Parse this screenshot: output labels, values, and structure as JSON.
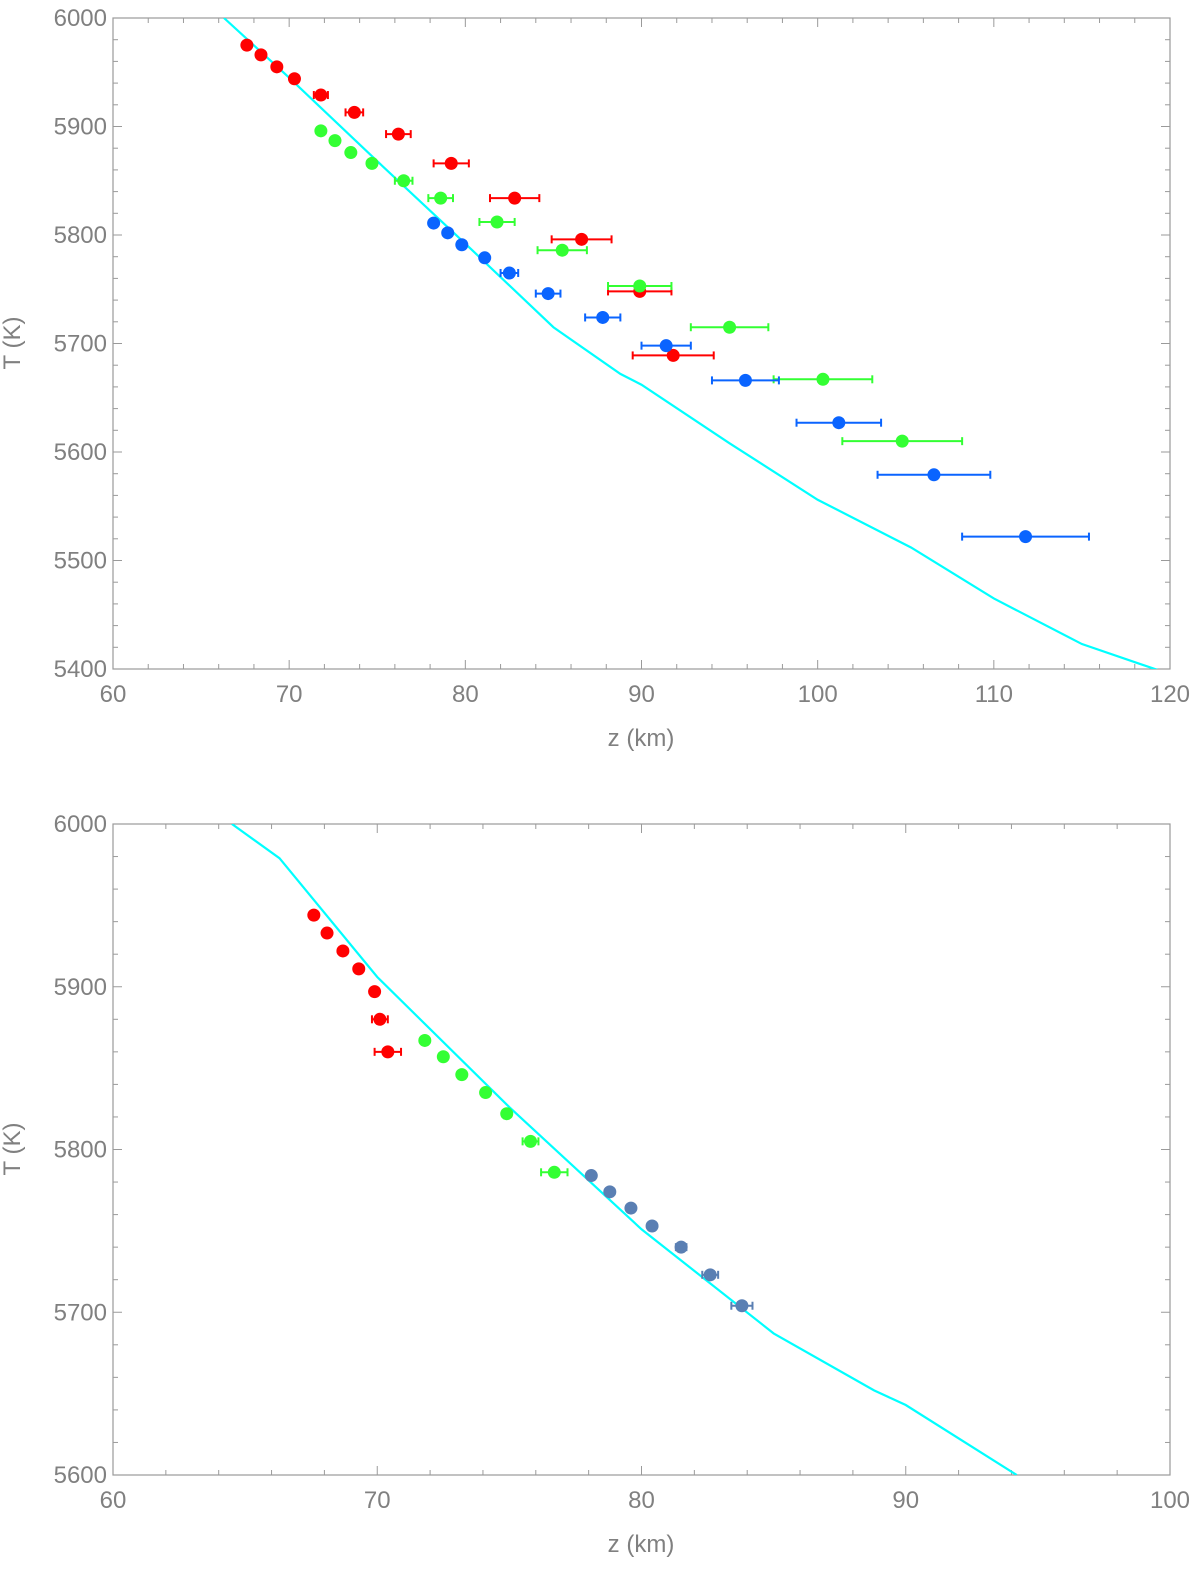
{
  "chart_data": [
    {
      "type": "scatter",
      "title": "",
      "xlabel": "z (km)",
      "ylabel": "T (K)",
      "xlim": [
        60,
        120
      ],
      "ylim": [
        5400,
        6000
      ],
      "xticks": [
        60,
        70,
        80,
        90,
        100,
        110,
        120
      ],
      "yticks": [
        5400,
        5500,
        5600,
        5700,
        5800,
        5900,
        6000
      ],
      "colors": {
        "red": "#ff0000",
        "green": "#33ff33",
        "blue": "#0a64ff",
        "model": "#00ffff"
      },
      "model_line": {
        "name": "model",
        "x": [
          66.3,
          70,
          75,
          80,
          85,
          88.8,
          90,
          95,
          100,
          105.3,
          110,
          115,
          119.5
        ],
        "y": [
          6000,
          5945,
          5868,
          5792,
          5715,
          5672,
          5662,
          5608,
          5556,
          5512,
          5465,
          5423,
          5398
        ]
      },
      "series": [
        {
          "name": "red",
          "x": [
            67.6,
            68.4,
            69.3,
            70.3,
            71.8,
            73.7,
            76.2,
            79.2,
            82.8,
            86.6,
            89.9,
            91.8
          ],
          "y": [
            5975,
            5966,
            5955,
            5944,
            5929,
            5913,
            5893,
            5866,
            5834,
            5796,
            5748,
            5689
          ],
          "err": [
            0,
            0,
            0,
            0,
            0.4,
            0.5,
            0.7,
            1.0,
            1.4,
            1.7,
            1.8,
            2.3
          ]
        },
        {
          "name": "green",
          "x": [
            71.8,
            72.6,
            73.5,
            74.7,
            76.5,
            78.6,
            81.8,
            85.5,
            89.9,
            95.0,
            100.3,
            104.8
          ],
          "y": [
            5896,
            5887,
            5876,
            5866,
            5850,
            5834,
            5812,
            5786,
            5753,
            5715,
            5667,
            5610
          ],
          "err": [
            0,
            0,
            0,
            0,
            0.5,
            0.7,
            1.0,
            1.4,
            1.8,
            2.2,
            2.8,
            3.4
          ]
        },
        {
          "name": "blue",
          "x": [
            78.2,
            79.0,
            79.8,
            81.1,
            82.5,
            84.7,
            87.8,
            91.4,
            95.9,
            101.2,
            106.6,
            111.8
          ],
          "y": [
            5811,
            5802,
            5791,
            5779,
            5765,
            5746,
            5724,
            5698,
            5666,
            5627,
            5579,
            5522
          ],
          "err": [
            0,
            0,
            0,
            0,
            0.5,
            0.7,
            1.0,
            1.4,
            1.9,
            2.4,
            3.2,
            3.6
          ]
        }
      ]
    },
    {
      "type": "scatter",
      "title": "",
      "xlabel": "z (km)",
      "ylabel": "T (K)",
      "xlim": [
        60,
        100
      ],
      "ylim": [
        5600,
        6000
      ],
      "xticks": [
        60,
        70,
        80,
        90,
        100
      ],
      "yticks": [
        5600,
        5700,
        5800,
        5900,
        6000
      ],
      "colors": {
        "red": "#ff0000",
        "green": "#33ff33",
        "blue": "#5a7fb3",
        "model": "#00ffff"
      },
      "model_line": {
        "name": "model",
        "x": [
          64.5,
          66.3,
          70,
          75,
          80,
          85,
          88.8,
          90,
          94.2
        ],
        "y": [
          6000,
          5979,
          5906,
          5826,
          5751,
          5687,
          5652,
          5643,
          5600
        ]
      },
      "series": [
        {
          "name": "red",
          "x": [
            67.6,
            68.1,
            68.7,
            69.3,
            69.9,
            70.1,
            70.4
          ],
          "y": [
            5944,
            5933,
            5922,
            5911,
            5897,
            5880,
            5860
          ],
          "err": [
            0,
            0,
            0,
            0,
            0,
            0.3,
            0.5
          ]
        },
        {
          "name": "green",
          "x": [
            71.8,
            72.5,
            73.2,
            74.1,
            74.9,
            75.8,
            76.7
          ],
          "y": [
            5867,
            5857,
            5846,
            5835,
            5822,
            5805,
            5786
          ],
          "err": [
            0,
            0,
            0,
            0,
            0,
            0.3,
            0.5
          ]
        },
        {
          "name": "blue",
          "x": [
            78.1,
            78.8,
            79.6,
            80.4,
            81.5,
            82.6,
            83.8
          ],
          "y": [
            5784,
            5774,
            5764,
            5753,
            5740,
            5723,
            5704
          ],
          "err": [
            0,
            0,
            0,
            0,
            0.2,
            0.3,
            0.4
          ]
        }
      ]
    }
  ]
}
